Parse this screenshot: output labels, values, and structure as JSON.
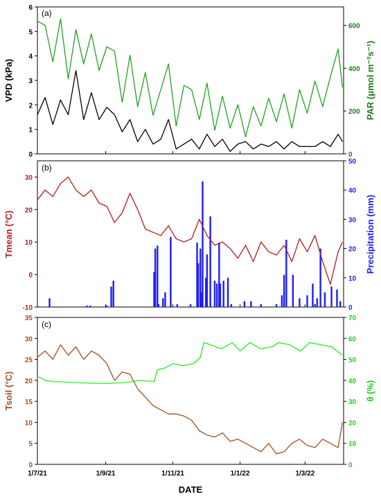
{
  "figure": {
    "xlabel": "DATE",
    "xticks": [
      "1/7/21",
      "1/9/21",
      "1/11/21",
      "1/1/22",
      "1/3/22"
    ]
  },
  "colors": {
    "vpd": "#000000",
    "par": "#22a022",
    "par_axis": "#1f7a1f",
    "tmean": "#b01c1c",
    "precip": "#1c1cff",
    "tsoil": "#a0501e",
    "theta": "#22ee22",
    "theta_axis": "#22cc22"
  },
  "chart_data": [
    {
      "panel": "(a)",
      "type": "line",
      "x_range": [
        "2021-07-01",
        "2022-04-05"
      ],
      "left_axis": {
        "label": "VPD (kPa)",
        "ylim": [
          0,
          6
        ],
        "ticks": [
          0,
          1,
          2,
          3,
          4,
          5,
          6
        ]
      },
      "right_axis": {
        "label": "PAR (μmol m⁻²s⁻¹)",
        "ylim": [
          0,
          686
        ],
        "ticks": [
          0,
          200,
          400,
          600
        ]
      },
      "series": [
        {
          "name": "VPD",
          "axis": "left",
          "color": "#000000",
          "dates": [
            "2021-07-01",
            "2021-07-08",
            "2021-07-15",
            "2021-07-22",
            "2021-07-29",
            "2021-08-05",
            "2021-08-12",
            "2021-08-19",
            "2021-08-26",
            "2021-09-02",
            "2021-09-09",
            "2021-09-16",
            "2021-09-23",
            "2021-09-30",
            "2021-10-07",
            "2021-10-14",
            "2021-10-21",
            "2021-10-28",
            "2021-11-04",
            "2021-11-11",
            "2021-11-18",
            "2021-11-25",
            "2021-12-02",
            "2021-12-09",
            "2021-12-16",
            "2021-12-23",
            "2021-12-30",
            "2022-01-06",
            "2022-01-13",
            "2022-01-20",
            "2022-01-27",
            "2022-02-03",
            "2022-02-10",
            "2022-02-17",
            "2022-02-24",
            "2022-03-03",
            "2022-03-10",
            "2022-03-17",
            "2022-03-24",
            "2022-03-31",
            "2022-04-04"
          ],
          "values": [
            1.6,
            2.3,
            1.2,
            2.2,
            1.6,
            3.4,
            1.4,
            2.5,
            1.4,
            1.9,
            1.6,
            0.9,
            1.4,
            0.5,
            1.0,
            0.4,
            0.6,
            1.4,
            0.2,
            0.4,
            0.6,
            0.2,
            0.8,
            0.3,
            0.6,
            0.1,
            0.4,
            0.5,
            0.2,
            0.4,
            0.3,
            0.5,
            0.2,
            0.5,
            0.3,
            0.3,
            0.3,
            0.5,
            0.3,
            0.8,
            0.5
          ]
        },
        {
          "name": "PAR",
          "axis": "right",
          "color": "#22a022",
          "dates": [
            "2021-07-01",
            "2021-07-08",
            "2021-07-15",
            "2021-07-22",
            "2021-07-29",
            "2021-08-05",
            "2021-08-12",
            "2021-08-19",
            "2021-08-26",
            "2021-09-02",
            "2021-09-09",
            "2021-09-16",
            "2021-09-23",
            "2021-09-30",
            "2021-10-07",
            "2021-10-14",
            "2021-10-21",
            "2021-10-28",
            "2021-11-04",
            "2021-11-11",
            "2021-11-18",
            "2021-11-25",
            "2021-12-02",
            "2021-12-09",
            "2021-12-16",
            "2021-12-23",
            "2021-12-30",
            "2022-01-06",
            "2022-01-13",
            "2022-01-20",
            "2022-01-27",
            "2022-02-03",
            "2022-02-10",
            "2022-02-17",
            "2022-02-24",
            "2022-03-03",
            "2022-03-10",
            "2022-03-17",
            "2022-03-24",
            "2022-03-31",
            "2022-04-04"
          ],
          "values": [
            620,
            600,
            430,
            630,
            350,
            580,
            420,
            560,
            390,
            500,
            480,
            240,
            460,
            220,
            380,
            180,
            300,
            420,
            130,
            320,
            300,
            160,
            330,
            110,
            270,
            120,
            230,
            80,
            220,
            130,
            260,
            150,
            280,
            120,
            300,
            190,
            340,
            220,
            360,
            490,
            310
          ]
        }
      ]
    },
    {
      "panel": "(b)",
      "type": "line+bar",
      "x_range": [
        "2021-07-01",
        "2022-04-05"
      ],
      "left_axis": {
        "label": "Tmean (°C)",
        "ylim": [
          -10,
          35
        ],
        "ticks": [
          -10,
          0,
          10,
          20,
          30
        ]
      },
      "right_axis": {
        "label": "Precipitation (mm)",
        "ylim": [
          0,
          50
        ],
        "ticks": [
          0,
          10,
          20,
          30,
          40,
          50
        ]
      },
      "series": [
        {
          "name": "Tmean",
          "axis": "left",
          "type": "line",
          "color": "#b01c1c",
          "dates": [
            "2021-07-01",
            "2021-07-08",
            "2021-07-15",
            "2021-07-22",
            "2021-07-29",
            "2021-08-05",
            "2021-08-12",
            "2021-08-19",
            "2021-08-26",
            "2021-09-02",
            "2021-09-09",
            "2021-09-16",
            "2021-09-23",
            "2021-09-30",
            "2021-10-07",
            "2021-10-14",
            "2021-10-21",
            "2021-10-28",
            "2021-11-04",
            "2021-11-11",
            "2021-11-18",
            "2021-11-25",
            "2021-12-02",
            "2021-12-09",
            "2021-12-16",
            "2021-12-23",
            "2021-12-30",
            "2022-01-06",
            "2022-01-13",
            "2022-01-20",
            "2022-01-27",
            "2022-02-03",
            "2022-02-10",
            "2022-02-17",
            "2022-02-24",
            "2022-03-03",
            "2022-03-10",
            "2022-03-17",
            "2022-03-24",
            "2022-03-31",
            "2022-04-04"
          ],
          "values": [
            23,
            26,
            24,
            28,
            30,
            26,
            24,
            26,
            22,
            21,
            16,
            19,
            25,
            20,
            14,
            13,
            12,
            15,
            11,
            10,
            11,
            17,
            12,
            9,
            10,
            8,
            5,
            9,
            4,
            10,
            7,
            6,
            9,
            4,
            11,
            7,
            12,
            4,
            -3,
            7,
            10
          ]
        },
        {
          "name": "Precipitation",
          "axis": "right",
          "type": "bar",
          "color": "#1c1cff",
          "dates": [
            "2021-07-12",
            "2021-08-15",
            "2021-08-18",
            "2021-09-02",
            "2021-09-06",
            "2021-09-08",
            "2021-10-15",
            "2021-10-16",
            "2021-10-18",
            "2021-10-19",
            "2021-10-23",
            "2021-10-25",
            "2021-10-30",
            "2021-11-05",
            "2021-11-17",
            "2021-11-23",
            "2021-11-24",
            "2021-11-26",
            "2021-11-27",
            "2021-11-28",
            "2021-12-01",
            "2021-12-02",
            "2021-12-05",
            "2021-12-09",
            "2021-12-11",
            "2021-12-13",
            "2021-12-14",
            "2021-12-17",
            "2021-12-21",
            "2021-12-24",
            "2022-01-05",
            "2022-01-11",
            "2022-01-20",
            "2022-02-03",
            "2022-02-08",
            "2022-02-10",
            "2022-02-12",
            "2022-02-18",
            "2022-02-24",
            "2022-03-03",
            "2022-03-08",
            "2022-03-10",
            "2022-03-12",
            "2022-03-15",
            "2022-03-19",
            "2022-03-25",
            "2022-03-30",
            "2022-04-02"
          ],
          "values": [
            3,
            0.5,
            0.5,
            0.5,
            7,
            9,
            12,
            20,
            21,
            1,
            3,
            5,
            24,
            1,
            1,
            22,
            15,
            20,
            5,
            43,
            10,
            18,
            31,
            9,
            8,
            22,
            8,
            9,
            10,
            1,
            2,
            2,
            1,
            1,
            4,
            11,
            23,
            11,
            3,
            4,
            8,
            1,
            3,
            20,
            5,
            7,
            6,
            2
          ]
        }
      ]
    },
    {
      "panel": "(c)",
      "type": "line",
      "x_range": [
        "2021-07-01",
        "2022-04-05"
      ],
      "left_axis": {
        "label": "Tsoil (°C)",
        "ylim": [
          0,
          35
        ],
        "ticks": [
          0,
          5,
          10,
          15,
          20,
          25,
          30,
          35
        ]
      },
      "right_axis": {
        "label": "θ (%)",
        "ylim": [
          0,
          70
        ],
        "ticks": [
          0,
          10,
          20,
          30,
          40,
          50,
          60,
          70
        ]
      },
      "series": [
        {
          "name": "Tsoil",
          "axis": "left",
          "color": "#a0501e",
          "dates": [
            "2021-07-01",
            "2021-07-08",
            "2021-07-15",
            "2021-07-22",
            "2021-07-29",
            "2021-08-05",
            "2021-08-12",
            "2021-08-19",
            "2021-08-26",
            "2021-09-02",
            "2021-09-09",
            "2021-09-16",
            "2021-09-23",
            "2021-09-30",
            "2021-10-07",
            "2021-10-14",
            "2021-10-21",
            "2021-10-28",
            "2021-11-04",
            "2021-11-11",
            "2021-11-18",
            "2021-11-25",
            "2021-12-02",
            "2021-12-09",
            "2021-12-16",
            "2021-12-23",
            "2021-12-30",
            "2022-01-06",
            "2022-01-13",
            "2022-01-20",
            "2022-01-27",
            "2022-02-03",
            "2022-02-10",
            "2022-02-17",
            "2022-02-24",
            "2022-03-03",
            "2022-03-10",
            "2022-03-17",
            "2022-03-24",
            "2022-03-31",
            "2022-04-04"
          ],
          "values": [
            25.5,
            27,
            25,
            28.5,
            26,
            28,
            25,
            27,
            26,
            24,
            20,
            22,
            21.5,
            18,
            16,
            14,
            13,
            12,
            12,
            11.5,
            10.5,
            8,
            7,
            6.5,
            7.5,
            5.5,
            6,
            5,
            4,
            3,
            5,
            2.5,
            3,
            5,
            6,
            4.5,
            4,
            6,
            5,
            4,
            10
          ]
        },
        {
          "name": "θ",
          "axis": "right",
          "color": "#22ee22",
          "dates": [
            "2021-07-01",
            "2021-07-08",
            "2021-07-15",
            "2021-08-01",
            "2021-09-01",
            "2021-09-20",
            "2021-10-01",
            "2021-10-15",
            "2021-10-18",
            "2021-10-25",
            "2021-11-01",
            "2021-11-10",
            "2021-11-20",
            "2021-11-26",
            "2021-11-29",
            "2021-12-05",
            "2021-12-15",
            "2021-12-25",
            "2022-01-01",
            "2022-01-10",
            "2022-01-20",
            "2022-01-30",
            "2022-02-05",
            "2022-02-15",
            "2022-02-25",
            "2022-03-05",
            "2022-03-15",
            "2022-03-25",
            "2022-04-04"
          ],
          "values": [
            42,
            40,
            39.5,
            39,
            38.5,
            39,
            40,
            39.5,
            45,
            46,
            48,
            47,
            48,
            51,
            58,
            57,
            55,
            58,
            54,
            58,
            55,
            56,
            58,
            57,
            54,
            58,
            57,
            56,
            52
          ]
        }
      ]
    }
  ]
}
